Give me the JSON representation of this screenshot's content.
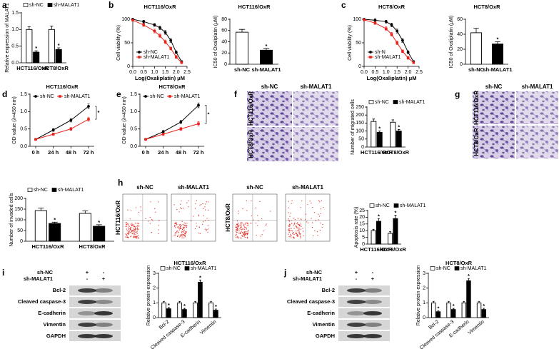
{
  "panel_letters": [
    "a",
    "b",
    "c",
    "d",
    "e",
    "f",
    "g",
    "h",
    "i",
    "j"
  ],
  "chart_data": [
    {
      "type": "bar",
      "ylabel": "Relative expression of MALAT1",
      "categories": [
        "HCT116/OxR",
        "HCT8/OxR"
      ],
      "series": [
        {
          "name": "sh-NC",
          "color": "#ffffff",
          "values": [
            1.0,
            1.0
          ],
          "errors": [
            0.08,
            0.1
          ]
        },
        {
          "name": "sh-MALAT1",
          "color": "#000000",
          "values": [
            0.32,
            0.4
          ],
          "errors": [
            0.04,
            0.05
          ]
        }
      ],
      "annotations": [
        {
          "text": "*",
          "series": 1,
          "index": 0
        },
        {
          "text": "*",
          "series": 1,
          "index": 1
        }
      ],
      "ylim": [
        0,
        1.5
      ],
      "yticks": [
        {
          "value": 0,
          "label": "0.0"
        },
        0.5,
        {
          "value": 1,
          "label": "1.0"
        },
        1.5
      ]
    },
    {
      "type": "line",
      "title": "HCT116/OxR",
      "xlabel": "Log(Oxaliplatin) μM",
      "ylabel": "Cell viability (%)",
      "x": [
        0,
        0.5,
        1,
        1.25,
        1.5,
        1.75,
        2,
        2.25
      ],
      "series": [
        {
          "name": "sh-NC",
          "color": "#000000",
          "marker": "circle",
          "values": [
            100,
            95,
            88,
            82,
            72,
            55,
            30,
            10
          ],
          "errors": [
            2,
            3,
            3,
            4,
            4,
            4,
            3,
            2
          ]
        },
        {
          "name": "sh-MALAT1",
          "color": "#e8221d",
          "marker": "square",
          "values": [
            98,
            88,
            75,
            65,
            52,
            38,
            20,
            8
          ],
          "errors": [
            2,
            3,
            4,
            4,
            4,
            3,
            3,
            2
          ]
        }
      ],
      "xlim": [
        0,
        2.5
      ],
      "xticks": [
        {
          "value": 0,
          "label": "0.0"
        },
        0.5,
        {
          "value": 1,
          "label": "1.0"
        },
        1.5,
        {
          "value": 2,
          "label": "2.0"
        },
        2.5
      ],
      "ylim": [
        0,
        100
      ],
      "yticks": [
        0,
        50,
        100
      ],
      "legend": "lower left"
    },
    {
      "type": "bar",
      "title": "HCT116/OxR",
      "ylabel": "IC50 of Oxaliplatin (μM)",
      "categories": [
        "sh-NC",
        "sh-MALAT1"
      ],
      "values": [
        57,
        25
      ],
      "errors": [
        5,
        3
      ],
      "colors": [
        "#ffffff",
        "#000000"
      ],
      "annotations": [
        {
          "text": "*",
          "index": 1
        }
      ],
      "ylim": [
        0,
        80
      ],
      "yticks": [
        0,
        20,
        40,
        60,
        80
      ]
    },
    {
      "type": "line",
      "title": "HCT8/OxR",
      "xlabel": "Log(Oxaliplatin) μM",
      "ylabel": "Cell viability (%)",
      "x": [
        0,
        0.5,
        1,
        1.25,
        1.5,
        1.75,
        2,
        2.25
      ],
      "series": [
        {
          "name": "sh-N",
          "color": "#000000",
          "marker": "circle",
          "values": [
            100,
            98,
            95,
            88,
            75,
            55,
            30,
            10
          ],
          "errors": [
            2,
            3,
            3,
            4,
            4,
            4,
            3,
            2
          ]
        },
        {
          "name": "sh-MALAT1",
          "color": "#e8221d",
          "marker": "square",
          "values": [
            99,
            92,
            80,
            68,
            50,
            32,
            18,
            8
          ],
          "errors": [
            2,
            3,
            4,
            4,
            4,
            3,
            3,
            2
          ]
        }
      ],
      "xlim": [
        0,
        2.5
      ],
      "xticks": [
        {
          "value": 0,
          "label": "0.0"
        },
        0.5,
        {
          "value": 1,
          "label": "1.0"
        },
        1.5,
        {
          "value": 2,
          "label": "2.0"
        },
        2.5
      ],
      "ylim": [
        0,
        100
      ],
      "yticks": [
        0,
        50,
        100
      ],
      "legend": "lower left"
    },
    {
      "type": "bar",
      "title": "HCT8/OxR",
      "ylabel": "IC50 of Oxaliplatin (μM)",
      "categories": [
        "sh-NC",
        "sh-MALAT1"
      ],
      "values": [
        42,
        27
      ],
      "errors": [
        6,
        3
      ],
      "colors": [
        "#ffffff",
        "#000000"
      ],
      "annotations": [
        {
          "text": "*",
          "index": 1
        }
      ],
      "ylim": [
        0,
        60
      ],
      "yticks": [
        0,
        20,
        40,
        60
      ]
    },
    {
      "type": "line",
      "title": "HCT116/OxR",
      "ylabel": "OD value (λ=450 nm)",
      "categories": [
        "0 h",
        "24 h",
        "48 h",
        "72 h"
      ],
      "series": [
        {
          "name": "sh-NC",
          "color": "#000000",
          "marker": "circle",
          "values": [
            0.2,
            0.47,
            0.75,
            1.15
          ],
          "errors": [
            0.02,
            0.04,
            0.05,
            0.07
          ]
        },
        {
          "name": "sh-MALAT1",
          "color": "#e8221d",
          "marker": "square",
          "values": [
            0.2,
            0.35,
            0.5,
            0.78
          ],
          "errors": [
            0.02,
            0.03,
            0.04,
            0.06
          ]
        }
      ],
      "annotations": [
        {
          "text": "*"
        }
      ],
      "ylim": [
        0,
        1.5
      ],
      "yticks": [
        {
          "value": 0,
          "label": "0.0"
        },
        0.5,
        {
          "value": 1,
          "label": "1.0"
        },
        1.5
      ],
      "legend": "upper left"
    },
    {
      "type": "line",
      "title": "HCT8/OxR",
      "ylabel": "OD value (λ=450 nm)",
      "categories": [
        "0 h",
        "24 h",
        "48 h",
        "72 h"
      ],
      "series": [
        {
          "name": "sh-NC",
          "color": "#000000",
          "marker": "circle",
          "values": [
            0.2,
            0.42,
            0.7,
            1.18
          ],
          "errors": [
            0.02,
            0.04,
            0.05,
            0.07
          ]
        },
        {
          "name": "sh-MALAT1",
          "color": "#e8221d",
          "marker": "square",
          "values": [
            0.2,
            0.35,
            0.5,
            0.65
          ],
          "errors": [
            0.02,
            0.03,
            0.04,
            0.06
          ]
        }
      ],
      "annotations": [
        {
          "text": "*"
        }
      ],
      "ylim": [
        0,
        1.5
      ],
      "yticks": [
        {
          "value": 0,
          "label": "0.0"
        },
        0.5,
        {
          "value": 1,
          "label": "1.0"
        },
        1.5
      ],
      "legend": "upper left"
    },
    {
      "type": "bar",
      "ylabel": "Number of migrated cells",
      "categories": [
        "HCT116/OxR",
        "HCT8/OxR"
      ],
      "series": [
        {
          "name": "sh-NC",
          "color": "#ffffff",
          "values": [
            160,
            155
          ],
          "errors": [
            15,
            15
          ]
        },
        {
          "name": "sh-MALAT1",
          "color": "#000000",
          "values": [
            92,
            100
          ],
          "errors": [
            8,
            10
          ]
        }
      ],
      "annotations": [
        {
          "text": "*",
          "series": 1,
          "index": 0
        },
        {
          "text": "*",
          "series": 1,
          "index": 1
        }
      ],
      "ylim": [
        0,
        250
      ],
      "yticks": [
        0,
        50,
        100,
        150,
        200,
        250
      ]
    },
    {
      "type": "bar",
      "ylabel": "Number of invaded cells",
      "categories": [
        "HCT116/OxR",
        "HCT8/OxR"
      ],
      "series": [
        {
          "name": "sh-NC",
          "color": "#ffffff",
          "values": [
            143,
            130
          ],
          "errors": [
            12,
            12
          ]
        },
        {
          "name": "sh-MALAT1",
          "color": "#000000",
          "values": [
            83,
            70
          ],
          "errors": [
            6,
            7
          ]
        }
      ],
      "annotations": [
        {
          "text": "*",
          "series": 1,
          "index": 0
        },
        {
          "text": "*",
          "series": 1,
          "index": 1
        }
      ],
      "ylim": [
        0,
        200
      ],
      "yticks": [
        0,
        50,
        100,
        150,
        200
      ]
    },
    {
      "type": "bar",
      "ylabel": "Apoptosis rate (%)",
      "categories": [
        "HCT116/OxR",
        "HCT8/OxR"
      ],
      "series": [
        {
          "name": "sh-NC",
          "color": "#ffffff",
          "values": [
            10,
            8
          ],
          "errors": [
            1,
            1.2
          ]
        },
        {
          "name": "sh-MALAT1",
          "color": "#000000",
          "values": [
            17,
            19
          ],
          "errors": [
            2,
            2.5
          ]
        }
      ],
      "annotations": [
        {
          "text": "*",
          "series": 1,
          "index": 0
        },
        {
          "text": "*",
          "series": 1,
          "index": 1
        }
      ],
      "ylim": [
        0,
        25
      ],
      "yticks": [
        0,
        5,
        10,
        15,
        20,
        25
      ]
    },
    {
      "type": "bar",
      "title": "HCT116/OxR",
      "ylabel": "Relative protein expression",
      "categories": [
        "Bcl-2",
        "Cleaved caspase-3",
        "E-cadherin",
        "Vimentin"
      ],
      "series": [
        {
          "name": "sh-NC",
          "color": "#ffffff",
          "values": [
            1,
            1,
            1,
            1
          ],
          "errors": [
            0.1,
            0.1,
            0.1,
            0.1
          ]
        },
        {
          "name": "sh-MALAT1",
          "color": "#000000",
          "values": [
            0.6,
            0.55,
            2.4,
            0.5
          ],
          "errors": [
            0.08,
            0.07,
            0.15,
            0.08
          ]
        }
      ],
      "annotations": [
        {
          "text": "*",
          "series": 1,
          "index": 0
        },
        {
          "text": "*",
          "series": 1,
          "index": 1
        },
        {
          "text": "*",
          "series": 1,
          "index": 2
        },
        {
          "text": "*",
          "series": 1,
          "index": 3
        }
      ],
      "ylim": [
        0,
        3
      ],
      "yticks": [
        0,
        1,
        2,
        3
      ]
    },
    {
      "type": "bar",
      "title": "HCT8/OxR",
      "ylabel": "Relative protein expression",
      "categories": [
        "Bcl-2",
        "Cleaved caspase-3",
        "E-cadherin",
        "Vimentin"
      ],
      "series": [
        {
          "name": "sh-NC",
          "color": "#ffffff",
          "values": [
            1,
            1,
            1,
            1
          ],
          "errors": [
            0.1,
            0.1,
            0.1,
            0.1
          ]
        },
        {
          "name": "sh-MALAT1",
          "color": "#000000",
          "values": [
            0.4,
            0.55,
            2.5,
            0.55
          ],
          "errors": [
            0.06,
            0.07,
            0.15,
            0.08
          ]
        }
      ],
      "annotations": [
        {
          "text": "*",
          "series": 1,
          "index": 0
        },
        {
          "text": "*",
          "series": 1,
          "index": 1
        },
        {
          "text": "*",
          "series": 1,
          "index": 2
        },
        {
          "text": "*",
          "series": 1,
          "index": 3
        }
      ],
      "ylim": [
        0,
        3
      ],
      "yticks": [
        0,
        1,
        2,
        3
      ]
    }
  ],
  "micrographs": [
    {
      "columns": [
        "sh-NC",
        "sh-MALAT1"
      ],
      "rows": [
        "HCT116/OxR",
        "HCT8/OxR"
      ]
    },
    {
      "columns": [
        "sh-NC",
        "sh-MALAT1"
      ],
      "rows": [
        "HCT116/OxR",
        "HCT8/OxR"
      ]
    }
  ],
  "flow_cytometry": {
    "columns": [
      "sh-NC",
      "sh-MALAT1",
      "sh-NC",
      "sh-MALAT1"
    ],
    "rows": [
      "HCT116/OxR",
      "HCT8/OxR"
    ]
  },
  "blots": [
    {
      "conditions": [
        {
          "name": "sh-NC",
          "lanes": [
            "+",
            "-"
          ]
        },
        {
          "name": "sh-MALAT1",
          "lanes": [
            "-",
            "+"
          ]
        }
      ],
      "proteins": [
        "Bcl-2",
        "Cleaved caspase-3",
        "E-cadherin",
        "Vimentin",
        "GAPDH"
      ]
    },
    {
      "conditions": [
        {
          "name": "sh-NC",
          "lanes": [
            "+",
            "-"
          ]
        },
        {
          "name": "sh-MALAT1",
          "lanes": [
            "-",
            "+"
          ]
        }
      ],
      "proteins": [
        "Bcl-2",
        "Cleaved caspase-3",
        "E-cadherin",
        "Vimentin",
        "GAPDH"
      ]
    }
  ]
}
